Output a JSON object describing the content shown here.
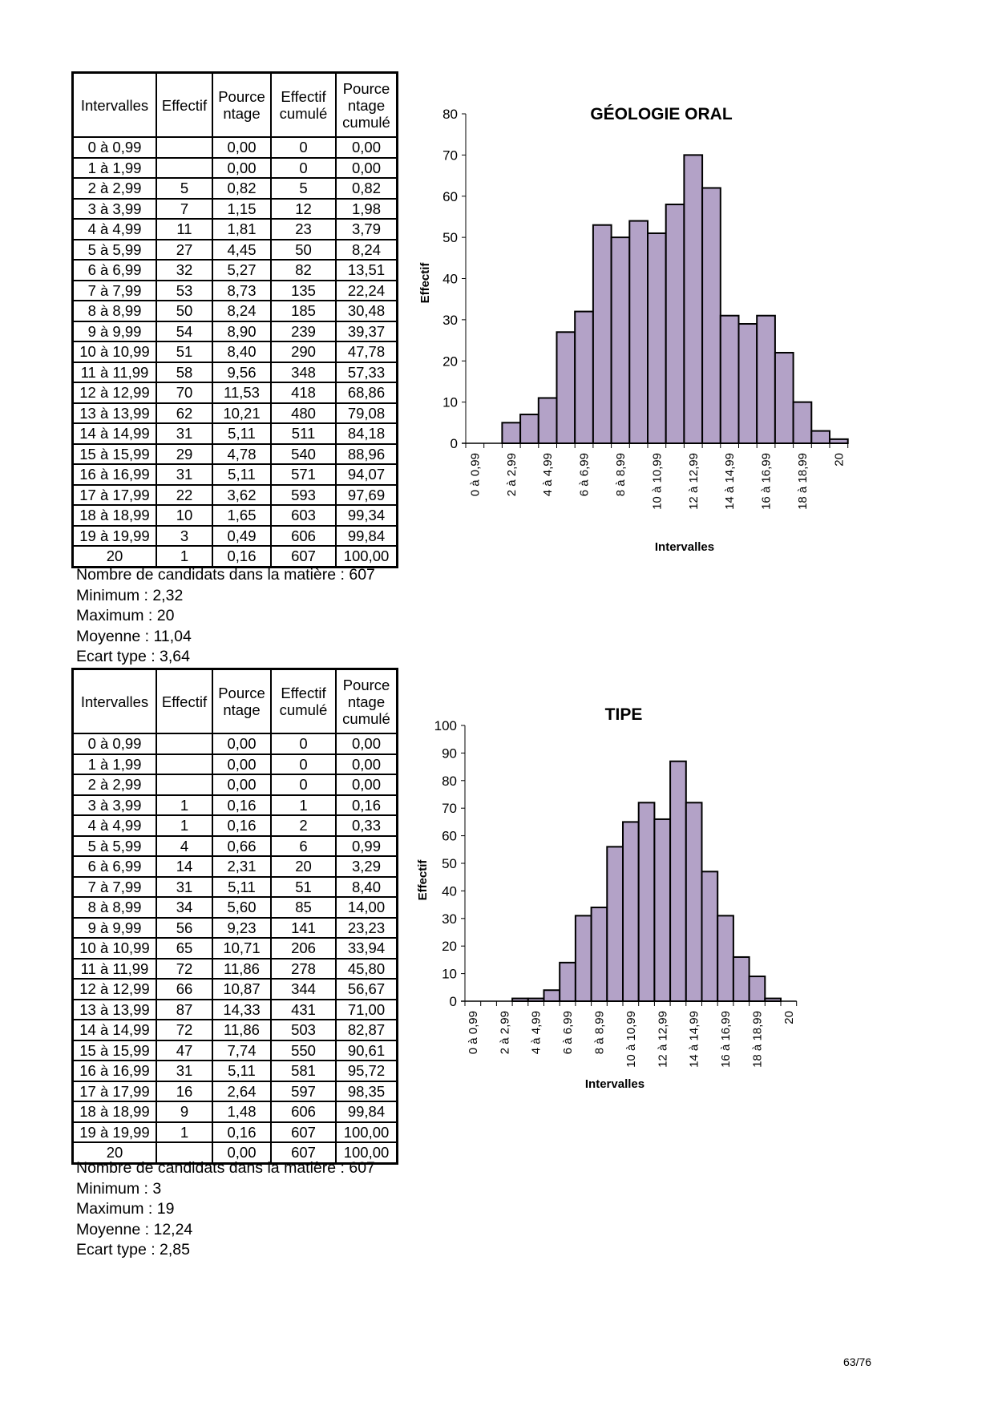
{
  "sections": [
    {
      "table": {
        "headers": [
          "Intervalles",
          "Effectif",
          "Pource ntage",
          "Effectif cumulé",
          "Pource ntage cumulé"
        ],
        "rows": [
          [
            "0 à 0,99",
            "",
            "0,00",
            "0",
            "0,00"
          ],
          [
            "1 à 1,99",
            "",
            "0,00",
            "0",
            "0,00"
          ],
          [
            "2 à 2,99",
            "5",
            "0,82",
            "5",
            "0,82"
          ],
          [
            "3 à 3,99",
            "7",
            "1,15",
            "12",
            "1,98"
          ],
          [
            "4 à 4,99",
            "11",
            "1,81",
            "23",
            "3,79"
          ],
          [
            "5 à 5,99",
            "27",
            "4,45",
            "50",
            "8,24"
          ],
          [
            "6 à 6,99",
            "32",
            "5,27",
            "82",
            "13,51"
          ],
          [
            "7 à 7,99",
            "53",
            "8,73",
            "135",
            "22,24"
          ],
          [
            "8 à 8,99",
            "50",
            "8,24",
            "185",
            "30,48"
          ],
          [
            "9 à 9,99",
            "54",
            "8,90",
            "239",
            "39,37"
          ],
          [
            "10 à 10,99",
            "51",
            "8,40",
            "290",
            "47,78"
          ],
          [
            "11 à 11,99",
            "58",
            "9,56",
            "348",
            "57,33"
          ],
          [
            "12 à 12,99",
            "70",
            "11,53",
            "418",
            "68,86"
          ],
          [
            "13 à 13,99",
            "62",
            "10,21",
            "480",
            "79,08"
          ],
          [
            "14 à 14,99",
            "31",
            "5,11",
            "511",
            "84,18"
          ],
          [
            "15 à 15,99",
            "29",
            "4,78",
            "540",
            "88,96"
          ],
          [
            "16 à 16,99",
            "31",
            "5,11",
            "571",
            "94,07"
          ],
          [
            "17 à 17,99",
            "22",
            "3,62",
            "593",
            "97,69"
          ],
          [
            "18 à 18,99",
            "10",
            "1,65",
            "603",
            "99,34"
          ],
          [
            "19 à 19,99",
            "3",
            "0,49",
            "606",
            "99,84"
          ],
          [
            "20",
            "1",
            "0,16",
            "607",
            "100,00"
          ]
        ]
      },
      "stats": [
        "Nombre de candidats dans la matière : 607",
        "Minimum : 2,32",
        "Maximum : 20",
        "Moyenne : 11,04",
        "Ecart type : 3,64"
      ]
    },
    {
      "table": {
        "headers": [
          "Intervalles",
          "Effectif",
          "Pource ntage",
          "Effectif cumulé",
          "Pource ntage cumulé"
        ],
        "rows": [
          [
            "0 à 0,99",
            "",
            "0,00",
            "0",
            "0,00"
          ],
          [
            "1 à 1,99",
            "",
            "0,00",
            "0",
            "0,00"
          ],
          [
            "2 à 2,99",
            "",
            "0,00",
            "0",
            "0,00"
          ],
          [
            "3 à 3,99",
            "1",
            "0,16",
            "1",
            "0,16"
          ],
          [
            "4 à 4,99",
            "1",
            "0,16",
            "2",
            "0,33"
          ],
          [
            "5 à 5,99",
            "4",
            "0,66",
            "6",
            "0,99"
          ],
          [
            "6 à 6,99",
            "14",
            "2,31",
            "20",
            "3,29"
          ],
          [
            "7 à 7,99",
            "31",
            "5,11",
            "51",
            "8,40"
          ],
          [
            "8 à 8,99",
            "34",
            "5,60",
            "85",
            "14,00"
          ],
          [
            "9 à 9,99",
            "56",
            "9,23",
            "141",
            "23,23"
          ],
          [
            "10 à 10,99",
            "65",
            "10,71",
            "206",
            "33,94"
          ],
          [
            "11 à 11,99",
            "72",
            "11,86",
            "278",
            "45,80"
          ],
          [
            "12 à 12,99",
            "66",
            "10,87",
            "344",
            "56,67"
          ],
          [
            "13 à 13,99",
            "87",
            "14,33",
            "431",
            "71,00"
          ],
          [
            "14 à 14,99",
            "72",
            "11,86",
            "503",
            "82,87"
          ],
          [
            "15 à 15,99",
            "47",
            "7,74",
            "550",
            "90,61"
          ],
          [
            "16 à 16,99",
            "31",
            "5,11",
            "581",
            "95,72"
          ],
          [
            "17 à 17,99",
            "16",
            "2,64",
            "597",
            "98,35"
          ],
          [
            "18 à 18,99",
            "9",
            "1,48",
            "606",
            "99,84"
          ],
          [
            "19 à 19,99",
            "1",
            "0,16",
            "607",
            "100,00"
          ],
          [
            "20",
            "",
            "0,00",
            "607",
            "100,00"
          ]
        ]
      },
      "stats": [
        "Nombre de candidats dans la matière : 607",
        "Minimum : 3",
        "Maximum : 19",
        "Moyenne : 12,24",
        "Ecart type : 2,85"
      ]
    }
  ],
  "chart_data": [
    {
      "type": "bar",
      "title": "GÉOLOGIE ORAL",
      "xlabel": "Intervalles",
      "ylabel": "Effectif",
      "categories": [
        "0 à 0,99",
        "1 à 1,99",
        "2 à 2,99",
        "3 à 3,99",
        "4 à 4,99",
        "5 à 5,99",
        "6 à 6,99",
        "7 à 7,99",
        "8 à 8,99",
        "9 à 9,99",
        "10 à 10,99",
        "11 à 11,99",
        "12 à 12,99",
        "13 à 13,99",
        "14 à 14,99",
        "15 à 15,99",
        "16 à 16,99",
        "17 à 17,99",
        "18 à 18,99",
        "19 à 19,99",
        "20"
      ],
      "values": [
        0,
        0,
        5,
        7,
        11,
        27,
        32,
        53,
        50,
        54,
        51,
        58,
        70,
        62,
        31,
        29,
        31,
        22,
        10,
        3,
        1
      ],
      "ylim": [
        0,
        80
      ],
      "yticks": [
        0,
        10,
        20,
        30,
        40,
        50,
        60,
        70,
        80
      ],
      "bar_color": "#b3a2c7",
      "grid": false
    },
    {
      "type": "bar",
      "title": "TIPE",
      "xlabel": "Intervalles",
      "ylabel": "Effectif",
      "categories": [
        "0 à 0,99",
        "1 à 1,99",
        "2 à 2,99",
        "3 à 3,99",
        "4 à 4,99",
        "5 à 5,99",
        "6 à 6,99",
        "7 à 7,99",
        "8 à 8,99",
        "9 à 9,99",
        "10 à 10,99",
        "11 à 11,99",
        "12 à 12,99",
        "13 à 13,99",
        "14 à 14,99",
        "15 à 15,99",
        "16 à 16,99",
        "17 à 17,99",
        "18 à 18,99",
        "19 à 19,99",
        "20"
      ],
      "values": [
        0,
        0,
        0,
        1,
        1,
        4,
        14,
        31,
        34,
        56,
        65,
        72,
        66,
        87,
        72,
        47,
        31,
        16,
        9,
        1,
        0
      ],
      "ylim": [
        0,
        100
      ],
      "yticks": [
        0,
        10,
        20,
        30,
        40,
        50,
        60,
        70,
        80,
        90,
        100
      ],
      "bar_color": "#b3a2c7",
      "grid": false
    }
  ],
  "page_number": "63/76"
}
